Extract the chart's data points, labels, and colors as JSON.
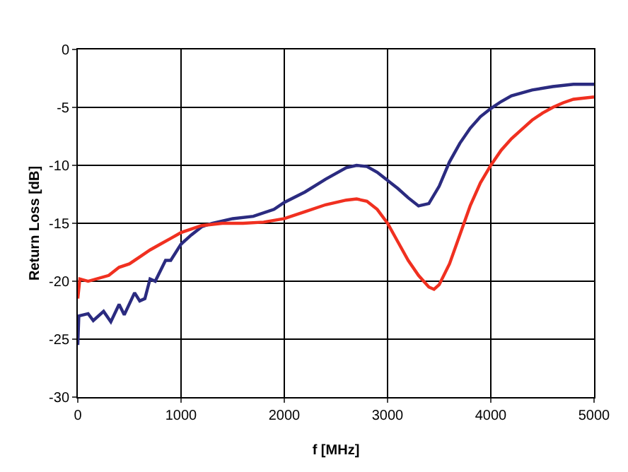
{
  "chart_data": {
    "type": "line",
    "xlabel": "f [MHz]",
    "ylabel": "Return Loss [dB]",
    "xlim": [
      0,
      5000
    ],
    "xticks": [
      0,
      1000,
      2000,
      3000,
      4000,
      5000
    ],
    "ylim": [
      -30,
      0
    ],
    "yticks": [
      -30,
      -25,
      -20,
      -15,
      -10,
      -5,
      0
    ],
    "grid": true,
    "marker": "none",
    "line_style": "solid",
    "series": [
      {
        "color": "#2b2b80",
        "x": [
          0,
          10,
          100,
          150,
          250,
          320,
          400,
          450,
          550,
          600,
          650,
          700,
          750,
          850,
          900,
          1000,
          1100,
          1200,
          1300,
          1500,
          1700,
          1900,
          2000,
          2200,
          2400,
          2600,
          2700,
          2800,
          2900,
          3000,
          3100,
          3200,
          3300,
          3400,
          3500,
          3600,
          3700,
          3800,
          3900,
          4000,
          4100,
          4200,
          4400,
          4600,
          4800,
          5000
        ],
        "values": [
          -25.5,
          -23,
          -22.8,
          -23.4,
          -22.6,
          -23.5,
          -22,
          -22.9,
          -21,
          -21.7,
          -21.5,
          -19.8,
          -20,
          -18.2,
          -18.2,
          -16.8,
          -16,
          -15.3,
          -15,
          -14.6,
          -14.4,
          -13.8,
          -13.2,
          -12.3,
          -11.2,
          -10.2,
          -10,
          -10.1,
          -10.6,
          -11.3,
          -12,
          -12.8,
          -13.5,
          -13.3,
          -11.8,
          -9.7,
          -8.1,
          -6.8,
          -5.8,
          -5.1,
          -4.5,
          -4,
          -3.5,
          -3.2,
          -3,
          -3
        ]
      },
      {
        "color": "#f03020",
        "x": [
          0,
          20,
          100,
          300,
          400,
          500,
          600,
          700,
          800,
          900,
          1000,
          1100,
          1200,
          1400,
          1600,
          1800,
          2000,
          2200,
          2400,
          2600,
          2700,
          2800,
          2900,
          3000,
          3100,
          3200,
          3300,
          3400,
          3450,
          3500,
          3600,
          3700,
          3800,
          3900,
          4000,
          4100,
          4200,
          4300,
          4400,
          4500,
          4600,
          4700,
          4800,
          5000
        ],
        "values": [
          -21.5,
          -19.8,
          -20,
          -19.5,
          -18.8,
          -18.5,
          -17.9,
          -17.3,
          -16.8,
          -16.3,
          -15.8,
          -15.5,
          -15.2,
          -15,
          -15,
          -14.9,
          -14.6,
          -14,
          -13.4,
          -13,
          -12.9,
          -13.1,
          -13.8,
          -15,
          -16.6,
          -18.2,
          -19.5,
          -20.5,
          -20.7,
          -20.3,
          -18.5,
          -16,
          -13.5,
          -11.5,
          -10,
          -8.7,
          -7.7,
          -6.9,
          -6.1,
          -5.5,
          -5,
          -4.6,
          -4.3,
          -4.1
        ]
      }
    ]
  }
}
